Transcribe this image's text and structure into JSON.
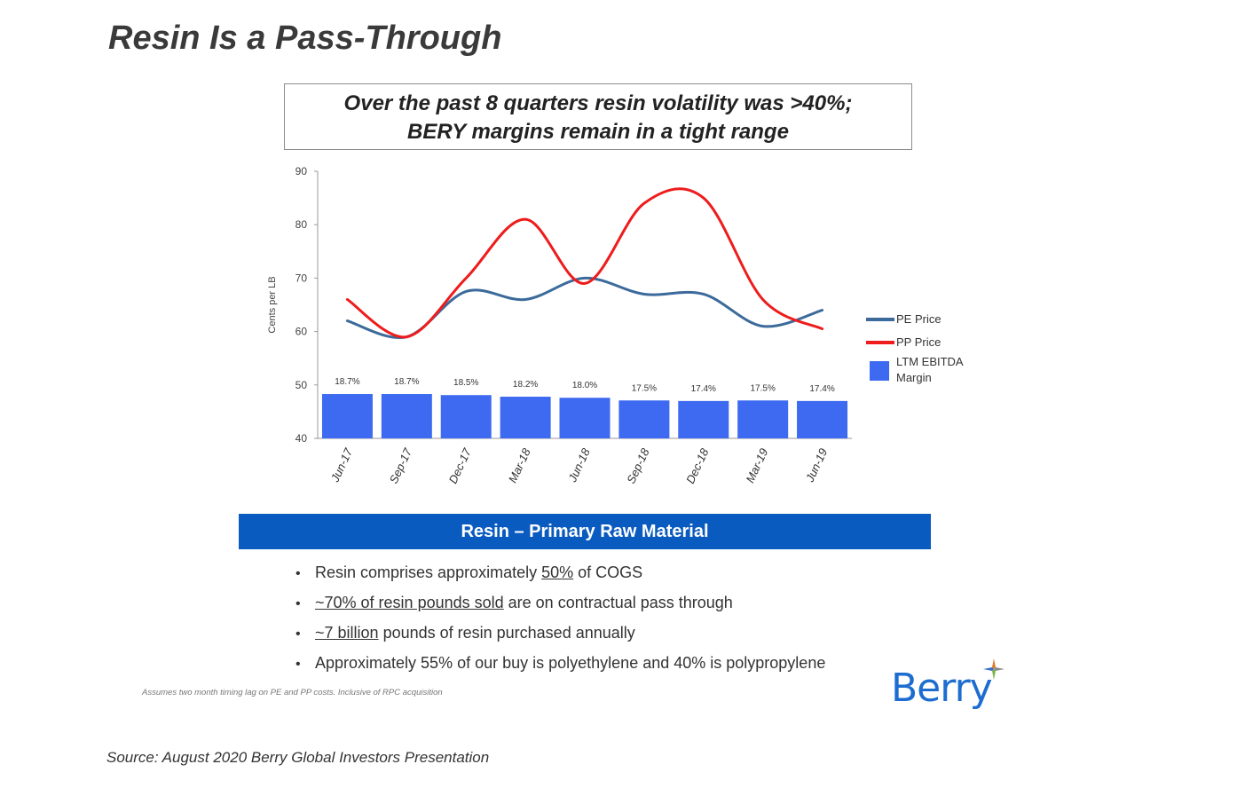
{
  "page_title": "Resin Is a Pass-Through",
  "callout": {
    "line1": "Over the past 8 quarters resin volatility was >40%;",
    "line2": "BERY margins remain in a tight range"
  },
  "colors": {
    "pe": "#3b6a9b",
    "pp": "#ee1c1c",
    "bar": "#3d6af0",
    "banner": "#0a5bbf",
    "logo": "#1d6dd0"
  },
  "chart_data": {
    "type": "bar",
    "title": "",
    "ylabel": "Cents per LB",
    "xlabel": "",
    "ylim": [
      40,
      90
    ],
    "yticks": [
      40,
      50,
      60,
      70,
      80,
      90
    ],
    "categories": [
      "Jun-17",
      "Sep-17",
      "Dec-17",
      "Mar-18",
      "Jun-18",
      "Sep-18",
      "Dec-18",
      "Mar-19",
      "Jun-19"
    ],
    "bars": {
      "name": "LTM EBITDA Margin",
      "values": [
        18.7,
        18.7,
        18.5,
        18.2,
        18.0,
        17.5,
        17.4,
        17.5,
        17.4
      ],
      "labels": [
        "18.7%",
        "18.7%",
        "18.5%",
        "18.2%",
        "18.0%",
        "17.5%",
        "17.4%",
        "17.5%",
        "17.4%"
      ]
    },
    "series": [
      {
        "name": "PE Price",
        "values": [
          62,
          59,
          67.5,
          66,
          70,
          67,
          67,
          61,
          64
        ]
      },
      {
        "name": "PP Price",
        "values": [
          66,
          59,
          70,
          81,
          69,
          84,
          85,
          66,
          60.5
        ]
      }
    ],
    "legend": [
      "PE Price",
      "PP Price",
      "LTM EBITDA Margin"
    ],
    "legend_position": "right"
  },
  "section": {
    "banner": "Resin – Primary Raw Material",
    "bullets": [
      {
        "pre": "Resin comprises approximately ",
        "u": "50%",
        "post": " of COGS"
      },
      {
        "pre": "",
        "u": "~70% of resin pounds sold",
        "post": " are on contractual pass through"
      },
      {
        "pre": "",
        "u": "~7 billion",
        "post": " pounds of resin purchased annually"
      },
      {
        "pre": "Approximately 55% of our buy is polyethylene and 40% is polypropylene",
        "u": "",
        "post": ""
      }
    ]
  },
  "footnote": "Assumes two month timing lag on PE and PP costs.  Inclusive of RPC acquisition",
  "logo": {
    "text": "Berry",
    "name": "berry-logo"
  },
  "source": "Source: August 2020 Berry Global Investors Presentation"
}
